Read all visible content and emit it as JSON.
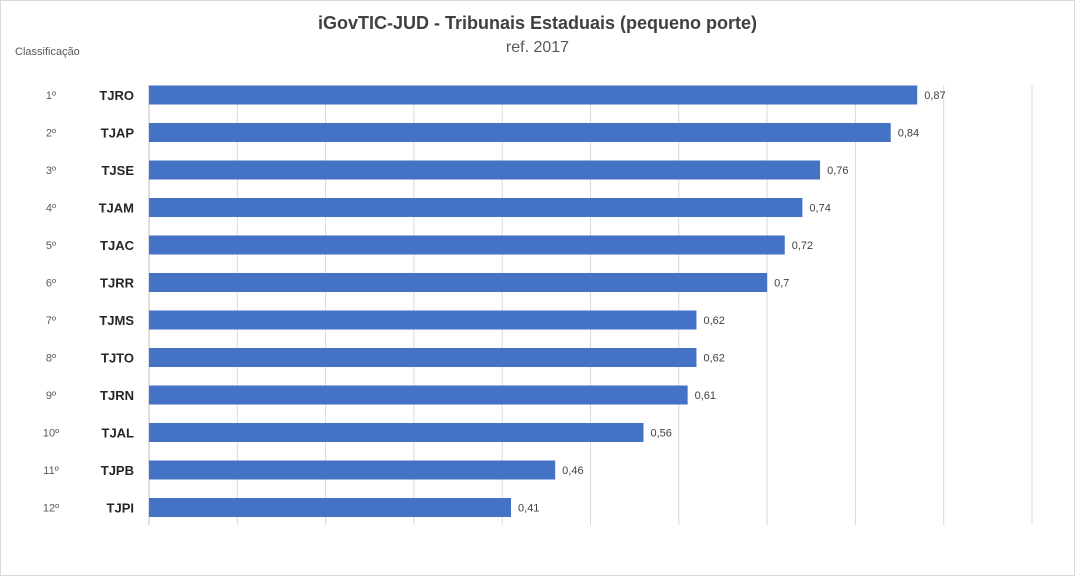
{
  "chart_data": {
    "type": "bar",
    "orientation": "horizontal",
    "title": "iGovTIC-JUD  - Tribunais  Estaduais  (pequeno porte)",
    "subtitle": "ref. 2017",
    "rank_header": "Classificação",
    "ranks": [
      "1º",
      "2º",
      "3º",
      "4º",
      "5º",
      "6º",
      "7º",
      "8º",
      "9º",
      "10º",
      "11º",
      "12º"
    ],
    "categories": [
      "TJRO",
      "TJAP",
      "TJSE",
      "TJAM",
      "TJAC",
      "TJRR",
      "TJMS",
      "TJTO",
      "TJRN",
      "TJAL",
      "TJPB",
      "TJPI"
    ],
    "values": [
      0.87,
      0.84,
      0.76,
      0.74,
      0.72,
      0.7,
      0.62,
      0.62,
      0.61,
      0.56,
      0.46,
      0.41
    ],
    "value_labels": [
      "0,87",
      "0,84",
      "0,76",
      "0,74",
      "0,72",
      "0,7",
      "0,62",
      "0,62",
      "0,61",
      "0,56",
      "0,46",
      "0,41"
    ],
    "xlim": [
      0,
      1.0
    ],
    "grid": true,
    "colors": {
      "bar": "#4472c4",
      "grid": "#d9d9d9"
    }
  }
}
